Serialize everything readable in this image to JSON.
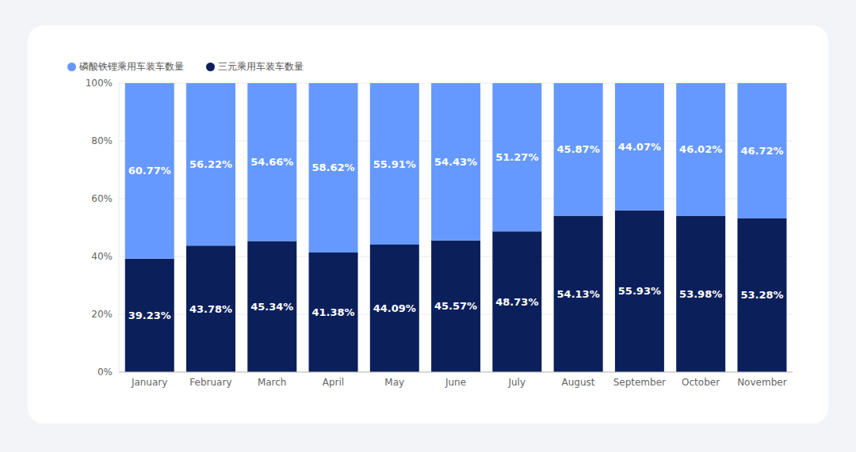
{
  "chart_data": {
    "type": "bar",
    "stacked": true,
    "data_labels": true,
    "grid": true,
    "legend": "top-left",
    "categories": [
      "January",
      "February",
      "March",
      "April",
      "May",
      "June",
      "July",
      "August",
      "September",
      "October",
      "November"
    ],
    "series": [
      {
        "name": "磷酸铁锂乘用车装车数量",
        "color": "#6699ff",
        "values": [
          60.77,
          56.22,
          54.66,
          58.62,
          55.91,
          54.43,
          51.27,
          45.87,
          44.07,
          46.02,
          46.72
        ],
        "value_labels": [
          "60.77%",
          "56.22%",
          "54.66%",
          "58.62%",
          "55.91%",
          "54.43%",
          "51.27%",
          "45.87%",
          "44.07%",
          "46.02%",
          "46.72%"
        ]
      },
      {
        "name": "三元乘用车装车数量",
        "color": "#0b1f5b",
        "values": [
          39.23,
          43.78,
          45.34,
          41.38,
          44.09,
          45.57,
          48.73,
          54.13,
          55.93,
          53.98,
          53.28
        ],
        "value_labels": [
          "39.23%",
          "43.78%",
          "45.34%",
          "41.38%",
          "44.09%",
          "45.57%",
          "48.73%",
          "54.13%",
          "55.93%",
          "53.98%",
          "53.28%"
        ]
      }
    ],
    "ylim": [
      0,
      100
    ],
    "yticks": [
      {
        "value": 0,
        "label": "0%"
      },
      {
        "value": 20,
        "label": "20%"
      },
      {
        "value": 40,
        "label": "40%"
      },
      {
        "value": 60,
        "label": "60%"
      },
      {
        "value": 80,
        "label": "80%"
      },
      {
        "value": 100,
        "label": "100%"
      }
    ]
  }
}
